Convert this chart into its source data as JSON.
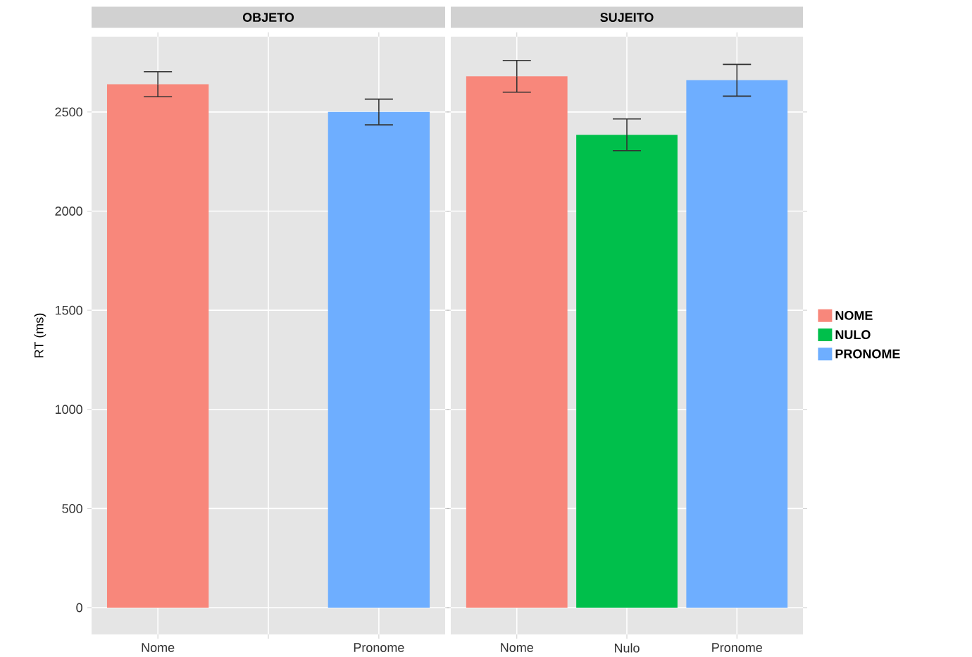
{
  "chart_data": [
    {
      "type": "bar",
      "title": "OBJETO",
      "ylabel": "RT (ms)",
      "categories": [
        "Nome",
        null,
        "Pronome"
      ],
      "ylim": [
        -135,
        2880
      ],
      "yticks": [
        0,
        500,
        1000,
        1500,
        2000,
        2500
      ],
      "grid": true,
      "series": [
        {
          "color": "#f8877b",
          "values": [
            2640,
            null,
            null
          ],
          "errors": [
            63,
            null,
            null
          ]
        },
        {
          "color": "#00bf4b",
          "values": [
            null,
            null,
            null
          ],
          "errors": [
            null,
            null,
            null
          ]
        },
        {
          "color": "#6eaeff",
          "values": [
            null,
            null,
            2500
          ],
          "errors": [
            null,
            null,
            65
          ]
        }
      ]
    },
    {
      "type": "bar",
      "title": "SUJEITO",
      "categories": [
        "Nome",
        "Nulo",
        "Pronome"
      ],
      "ylim": [
        -135,
        2880
      ],
      "yticks": [
        0,
        500,
        1000,
        1500,
        2000,
        2500
      ],
      "grid": true,
      "tick_labels": "x",
      "legend": "right",
      "series": [
        {
          "name": "NOME",
          "color": "#f8877b",
          "values": [
            2680,
            null,
            null
          ],
          "errors": [
            80,
            null,
            null
          ]
        },
        {
          "name": "NULO",
          "color": "#00bf4b",
          "values": [
            null,
            2385,
            null
          ],
          "errors": [
            null,
            80,
            null
          ]
        },
        {
          "name": "PRONOME",
          "color": "#6eaeff",
          "values": [
            null,
            null,
            2660
          ],
          "errors": [
            null,
            null,
            80
          ]
        }
      ]
    }
  ]
}
